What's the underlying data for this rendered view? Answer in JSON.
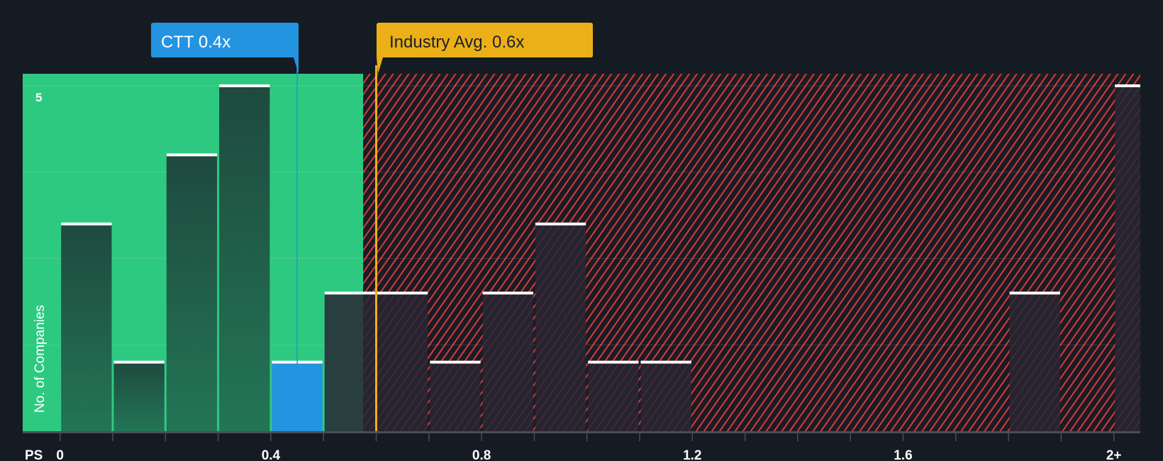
{
  "chart_data": {
    "type": "bar",
    "title": "",
    "xlabel": "PS",
    "ylabel": "No. of Companies",
    "bin_width": 0.1,
    "bins_start": [
      0,
      0.1,
      0.2,
      0.3,
      0.4,
      0.5,
      0.6,
      0.7,
      0.8,
      0.9,
      1.0,
      1.1,
      1.2,
      1.3,
      1.4,
      1.5,
      1.6,
      1.7,
      1.8,
      1.9
    ],
    "values": [
      3,
      1,
      4,
      5,
      1,
      2,
      2,
      1,
      2,
      3,
      1,
      1,
      0,
      0,
      0,
      0,
      0,
      0,
      2,
      0
    ],
    "overflow_bin": {
      "label": "2+",
      "value": 5
    },
    "x_ticks": [
      "0",
      "0.4",
      "0.8",
      "1.2",
      "1.6",
      "2+"
    ],
    "x_tick_values": [
      0,
      0.4,
      0.8,
      1.2,
      1.6,
      2.0
    ],
    "y_ticks": [
      "5"
    ],
    "ylim": [
      0,
      5.15
    ],
    "highlight": {
      "label": "CTT 0.4x",
      "value": 0.45,
      "bin_index": 4,
      "color": "#2394e0"
    },
    "industry_avg": {
      "label": "Industry Avg. 0.6x",
      "value": 0.6,
      "color": "#ebb017"
    },
    "colors": {
      "background": "#151b23",
      "fair_zone": "#2ec981",
      "bar_green": "#1f4f40",
      "hatch": "#d9393b",
      "bar_dark": "#2a2834",
      "cap": "#ffffff"
    }
  }
}
